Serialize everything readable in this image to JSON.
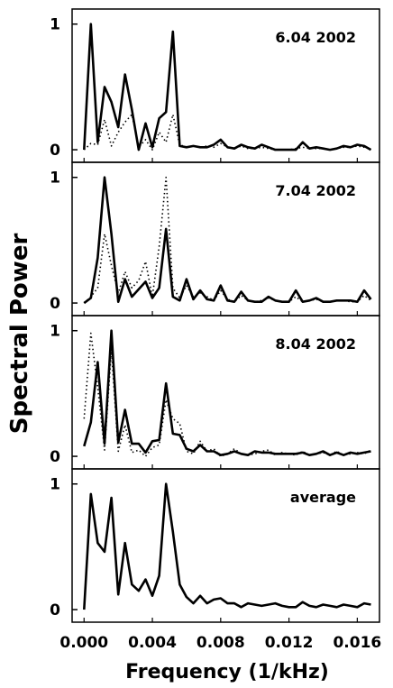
{
  "chart_data": {
    "type": "line",
    "ylabel": "Spectral Power",
    "xlabel": "Frequency (1/kHz)",
    "x_ticks": [
      "0.000",
      "0.004",
      "0.008",
      "0.012",
      "0.016"
    ],
    "xlim": [
      -0.0007,
      0.0173
    ],
    "panels": [
      {
        "label": "6.04 2002",
        "ylim": [
          -0.1,
          1.12
        ],
        "y_ticks": [
          "0",
          "1"
        ],
        "series": [
          {
            "style": "solid",
            "x": [
              0.0,
              0.0004,
              0.0008,
              0.0012,
              0.0016,
              0.002,
              0.0024,
              0.0028,
              0.0032,
              0.0036,
              0.004,
              0.0044,
              0.0048,
              0.0052,
              0.0056,
              0.006,
              0.0064,
              0.0068,
              0.0072,
              0.0076,
              0.008,
              0.0084,
              0.0088,
              0.0092,
              0.0096,
              0.01,
              0.0104,
              0.0108,
              0.0112,
              0.0116,
              0.012,
              0.0124,
              0.0128,
              0.0132,
              0.0136,
              0.014,
              0.0144,
              0.0148,
              0.0152,
              0.0156,
              0.016,
              0.0164,
              0.0168
            ],
            "values": [
              0.0,
              1.0,
              0.06,
              0.5,
              0.38,
              0.18,
              0.6,
              0.32,
              0.0,
              0.21,
              0.02,
              0.25,
              0.3,
              0.94,
              0.03,
              0.02,
              0.03,
              0.02,
              0.02,
              0.04,
              0.08,
              0.02,
              0.01,
              0.04,
              0.02,
              0.01,
              0.04,
              0.02,
              0.0,
              0.0,
              0.0,
              0.0,
              0.06,
              0.01,
              0.02,
              0.01,
              0.0,
              0.01,
              0.03,
              0.02,
              0.04,
              0.03,
              0.0
            ]
          },
          {
            "style": "dotted",
            "x": [
              0.0,
              0.0004,
              0.0008,
              0.0012,
              0.0016,
              0.002,
              0.0024,
              0.0028,
              0.0032,
              0.0036,
              0.004,
              0.0044,
              0.0048,
              0.0052,
              0.0056,
              0.006,
              0.0064,
              0.0068,
              0.0072,
              0.0076,
              0.008,
              0.0084,
              0.0088,
              0.0092,
              0.0096,
              0.01,
              0.0104,
              0.0108,
              0.0112,
              0.0116,
              0.012,
              0.0124,
              0.0128,
              0.0132,
              0.0136,
              0.014,
              0.0144,
              0.0148,
              0.0152,
              0.0156,
              0.016,
              0.0164,
              0.0168
            ],
            "values": [
              0.0,
              0.05,
              0.04,
              0.24,
              0.03,
              0.14,
              0.22,
              0.28,
              0.02,
              0.08,
              0.0,
              0.14,
              0.06,
              0.28,
              0.04,
              0.02,
              0.03,
              0.02,
              0.03,
              0.02,
              0.05,
              0.02,
              0.01,
              0.03,
              0.01,
              0.01,
              0.02,
              0.01,
              0.0,
              0.0,
              0.0,
              0.01,
              0.02,
              0.01,
              0.01,
              0.01,
              0.0,
              0.01,
              0.02,
              0.02,
              0.03,
              0.02,
              0.01
            ]
          }
        ]
      },
      {
        "label": "7.04 2002",
        "ylim": [
          -0.1,
          1.12
        ],
        "y_ticks": [
          "0",
          "1"
        ],
        "series": [
          {
            "style": "solid",
            "x": [
              0.0,
              0.0004,
              0.0008,
              0.0012,
              0.0016,
              0.002,
              0.0024,
              0.0028,
              0.0032,
              0.0036,
              0.004,
              0.0044,
              0.0048,
              0.0052,
              0.0056,
              0.006,
              0.0064,
              0.0068,
              0.0072,
              0.0076,
              0.008,
              0.0084,
              0.0088,
              0.0092,
              0.0096,
              0.01,
              0.0104,
              0.0108,
              0.0112,
              0.0116,
              0.012,
              0.0124,
              0.0128,
              0.0132,
              0.0136,
              0.014,
              0.0144,
              0.0148,
              0.0152,
              0.0156,
              0.016,
              0.0164,
              0.0168
            ],
            "values": [
              0.0,
              0.04,
              0.36,
              1.0,
              0.55,
              0.01,
              0.19,
              0.05,
              0.11,
              0.17,
              0.04,
              0.12,
              0.59,
              0.05,
              0.02,
              0.19,
              0.03,
              0.1,
              0.03,
              0.02,
              0.14,
              0.02,
              0.01,
              0.09,
              0.02,
              0.01,
              0.01,
              0.05,
              0.02,
              0.01,
              0.01,
              0.1,
              0.01,
              0.02,
              0.04,
              0.01,
              0.01,
              0.02,
              0.02,
              0.02,
              0.01,
              0.1,
              0.03
            ]
          },
          {
            "style": "dotted",
            "x": [
              0.0,
              0.0004,
              0.0008,
              0.0012,
              0.0016,
              0.002,
              0.0024,
              0.0028,
              0.0032,
              0.0036,
              0.004,
              0.0044,
              0.0048,
              0.0052,
              0.0056,
              0.006,
              0.0064,
              0.0068,
              0.0072,
              0.0076,
              0.008,
              0.0084,
              0.0088,
              0.0092,
              0.0096,
              0.01,
              0.0104,
              0.0108,
              0.0112,
              0.0116,
              0.012,
              0.0124,
              0.0128,
              0.0132,
              0.0136,
              0.014,
              0.0144,
              0.0148,
              0.0152,
              0.0156,
              0.016,
              0.0164,
              0.0168
            ],
            "values": [
              0.0,
              0.05,
              0.12,
              0.55,
              0.3,
              0.08,
              0.25,
              0.12,
              0.18,
              0.33,
              0.05,
              0.45,
              1.0,
              0.12,
              0.04,
              0.14,
              0.05,
              0.08,
              0.05,
              0.02,
              0.1,
              0.03,
              0.01,
              0.06,
              0.02,
              0.01,
              0.02,
              0.04,
              0.02,
              0.01,
              0.01,
              0.05,
              0.01,
              0.02,
              0.03,
              0.01,
              0.01,
              0.02,
              0.02,
              0.01,
              0.01,
              0.06,
              0.02
            ]
          }
        ]
      },
      {
        "label": "8.04 2002",
        "ylim": [
          -0.1,
          1.12
        ],
        "y_ticks": [
          "0",
          "1"
        ],
        "series": [
          {
            "style": "solid",
            "x": [
              0.0,
              0.0004,
              0.0008,
              0.0012,
              0.0016,
              0.002,
              0.0024,
              0.0028,
              0.0032,
              0.0036,
              0.004,
              0.0044,
              0.0048,
              0.0052,
              0.0056,
              0.006,
              0.0064,
              0.0068,
              0.0072,
              0.0076,
              0.008,
              0.0084,
              0.0088,
              0.0092,
              0.0096,
              0.01,
              0.0104,
              0.0108,
              0.0112,
              0.0116,
              0.012,
              0.0124,
              0.0128,
              0.0132,
              0.0136,
              0.014,
              0.0144,
              0.0148,
              0.0152,
              0.0156,
              0.016,
              0.0164,
              0.0168
            ],
            "values": [
              0.08,
              0.27,
              0.75,
              0.1,
              1.0,
              0.11,
              0.37,
              0.1,
              0.1,
              0.03,
              0.12,
              0.13,
              0.58,
              0.18,
              0.17,
              0.06,
              0.04,
              0.09,
              0.04,
              0.04,
              0.01,
              0.02,
              0.04,
              0.02,
              0.01,
              0.04,
              0.03,
              0.03,
              0.02,
              0.02,
              0.02,
              0.02,
              0.03,
              0.01,
              0.02,
              0.04,
              0.01,
              0.03,
              0.01,
              0.03,
              0.02,
              0.03,
              0.04
            ]
          },
          {
            "style": "dotted",
            "x": [
              0.0,
              0.0004,
              0.0008,
              0.0012,
              0.0016,
              0.002,
              0.0024,
              0.0028,
              0.0032,
              0.0036,
              0.004,
              0.0044,
              0.0048,
              0.0052,
              0.0056,
              0.006,
              0.0064,
              0.0068,
              0.0072,
              0.0076,
              0.008,
              0.0084,
              0.0088,
              0.0092,
              0.0096,
              0.01,
              0.0104,
              0.0108,
              0.0112,
              0.0116,
              0.012,
              0.0124,
              0.0128,
              0.0132,
              0.0136,
              0.014,
              0.0144,
              0.0148,
              0.0152,
              0.0156,
              0.016,
              0.0164,
              0.0168
            ],
            "values": [
              0.3,
              0.98,
              0.55,
              0.05,
              0.85,
              0.04,
              0.25,
              0.03,
              0.05,
              0.0,
              0.07,
              0.09,
              0.45,
              0.3,
              0.26,
              0.04,
              0.02,
              0.12,
              0.04,
              0.06,
              0.0,
              0.02,
              0.06,
              0.02,
              0.01,
              0.02,
              0.04,
              0.05,
              0.01,
              0.03,
              0.02,
              0.01,
              0.04,
              0.01,
              0.02,
              0.03,
              0.01,
              0.04,
              0.01,
              0.02,
              0.03,
              0.02,
              0.05
            ]
          }
        ]
      },
      {
        "label": "average",
        "ylim": [
          -0.1,
          1.12
        ],
        "y_ticks": [
          "0",
          "1"
        ],
        "series": [
          {
            "style": "solid",
            "x": [
              0.0,
              0.0004,
              0.0008,
              0.0012,
              0.0016,
              0.002,
              0.0024,
              0.0028,
              0.0032,
              0.0036,
              0.004,
              0.0044,
              0.0048,
              0.0052,
              0.0056,
              0.006,
              0.0064,
              0.0068,
              0.0072,
              0.0076,
              0.008,
              0.0084,
              0.0088,
              0.0092,
              0.0096,
              0.01,
              0.0104,
              0.0108,
              0.0112,
              0.0116,
              0.012,
              0.0124,
              0.0128,
              0.0132,
              0.0136,
              0.014,
              0.0144,
              0.0148,
              0.0152,
              0.0156,
              0.016,
              0.0164,
              0.0168
            ],
            "values": [
              0.0,
              0.92,
              0.53,
              0.46,
              0.89,
              0.12,
              0.53,
              0.2,
              0.15,
              0.24,
              0.11,
              0.27,
              1.0,
              0.62,
              0.2,
              0.1,
              0.05,
              0.11,
              0.05,
              0.08,
              0.09,
              0.05,
              0.05,
              0.02,
              0.05,
              0.04,
              0.03,
              0.04,
              0.05,
              0.03,
              0.02,
              0.02,
              0.06,
              0.03,
              0.02,
              0.04,
              0.03,
              0.02,
              0.04,
              0.03,
              0.02,
              0.05,
              0.04
            ]
          }
        ]
      }
    ]
  }
}
